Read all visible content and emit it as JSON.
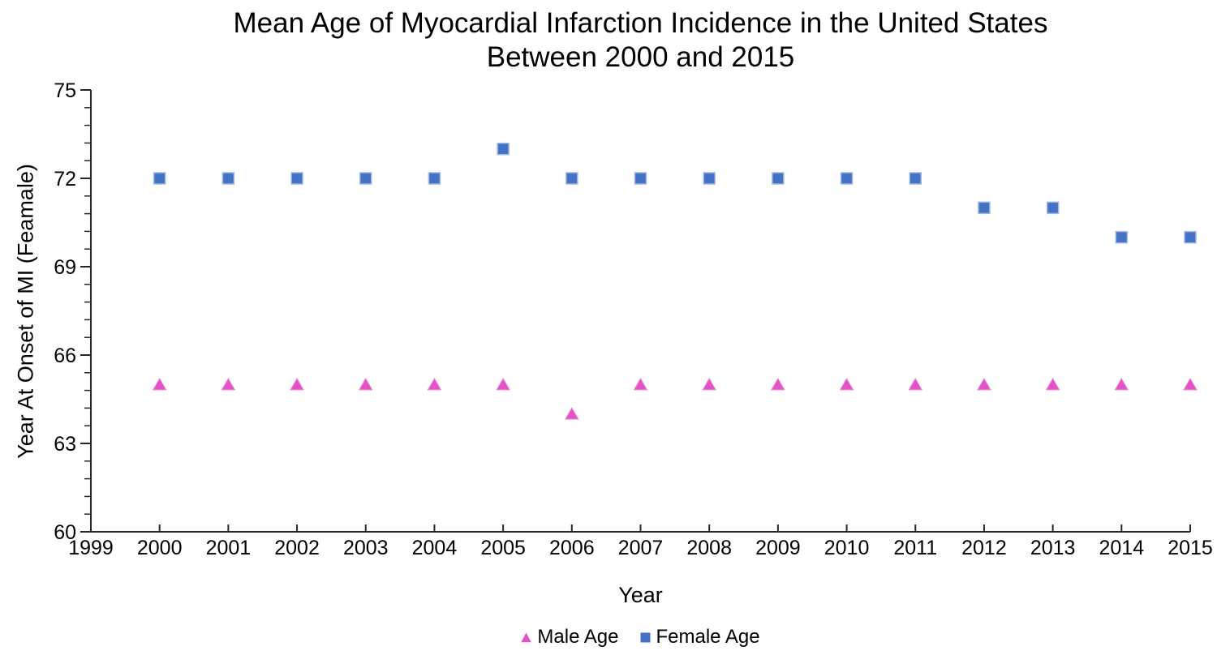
{
  "display_title": "Mean Age of Myocardial Infarction Incidence in the United States\nBetween 2000 and 2015",
  "chart_data": {
    "type": "scatter",
    "title": "Mean Age of Myocardial Infarction Incidence in the United States Between 2000 and 2015",
    "xlabel": "Year",
    "ylabel": "Year At Onset of MI (Feamale)",
    "xlim": [
      1999,
      2015
    ],
    "ylim": [
      60,
      75
    ],
    "x_major_unit": 1,
    "y_major_unit": 3,
    "y_minor_unit": 0.6,
    "grid": false,
    "legend_position": "bottom-center",
    "axis_color": "#262626",
    "x": [
      2000,
      2001,
      2002,
      2003,
      2004,
      2005,
      2006,
      2007,
      2008,
      2009,
      2010,
      2011,
      2012,
      2013,
      2014,
      2015
    ],
    "x_tick_labels": [
      1999,
      2000,
      2001,
      2002,
      2003,
      2004,
      2005,
      2006,
      2007,
      2008,
      2009,
      2010,
      2011,
      2012,
      2013,
      2014,
      2015
    ],
    "y_tick_labels": [
      60,
      63,
      66,
      69,
      72,
      75
    ],
    "series": [
      {
        "name": "Male Age",
        "marker": "triangle",
        "color": "#E353C8",
        "edge": "#EE8BD9",
        "values": [
          65,
          65,
          65,
          65,
          65,
          65,
          64,
          65,
          65,
          65,
          65,
          65,
          65,
          65,
          65,
          65
        ]
      },
      {
        "name": "Female Age",
        "marker": "square",
        "color": "#4472C4",
        "edge": "#9FB9E4",
        "values": [
          72,
          72,
          72,
          72,
          72,
          73,
          72,
          72,
          72,
          72,
          72,
          72,
          71,
          71,
          70,
          70
        ]
      }
    ]
  }
}
